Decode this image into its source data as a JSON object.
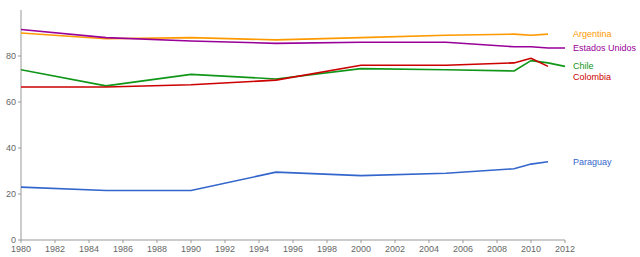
{
  "chart_data": {
    "type": "line",
    "x": [
      1980,
      1985,
      1990,
      1995,
      2000,
      2005,
      2009,
      2010,
      2011,
      2012
    ],
    "series": [
      {
        "name": "Argentina",
        "color": "#ff9900",
        "values": [
          90,
          87.5,
          88,
          87,
          88,
          89,
          89.5,
          89,
          89.5,
          null
        ]
      },
      {
        "name": "Estados Unidos",
        "color": "#990099",
        "values": [
          91.5,
          88,
          86.5,
          85.5,
          86,
          86,
          84,
          84,
          83.5,
          83.5
        ]
      },
      {
        "name": "Chile",
        "color": "#109618",
        "values": [
          74,
          67,
          72,
          70,
          74.5,
          74,
          73.5,
          78,
          77,
          75.5
        ]
      },
      {
        "name": "Colombia",
        "color": "#cc0000",
        "values": [
          66.5,
          66.5,
          67.5,
          69.5,
          76,
          76,
          77,
          79,
          75.5,
          null
        ]
      },
      {
        "name": "Paraguay",
        "color": "#3366cc",
        "values": [
          23,
          21.5,
          21.5,
          29.5,
          28,
          29,
          31,
          33,
          34,
          null
        ]
      }
    ],
    "xlim": [
      1980,
      2012
    ],
    "xticks": [
      1980,
      1982,
      1984,
      1986,
      1988,
      1990,
      1992,
      1994,
      1996,
      1998,
      2000,
      2002,
      2004,
      2006,
      2008,
      2010,
      2012
    ],
    "ylim": [
      0,
      100
    ],
    "yticks": [
      0,
      20,
      40,
      60,
      80
    ],
    "grid": false,
    "legend": "right"
  }
}
